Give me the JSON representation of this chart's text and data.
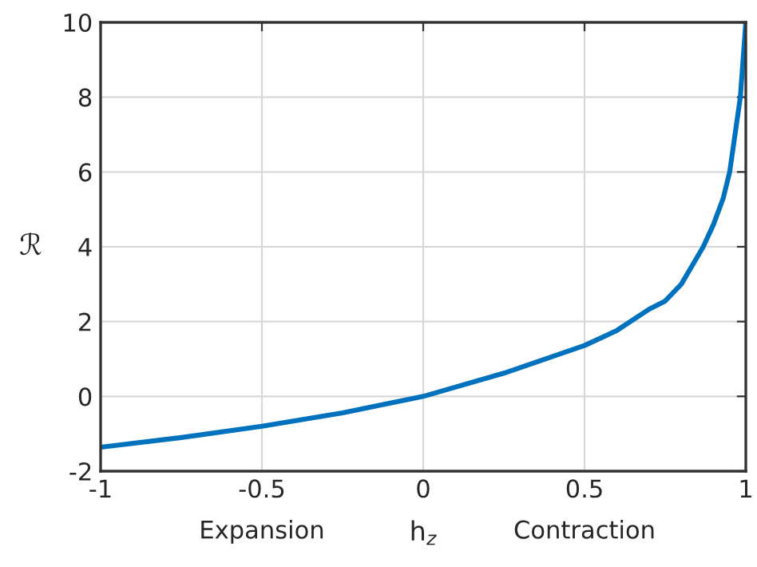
{
  "chart_data": {
    "type": "line",
    "xlabel": "h$_{z}$",
    "ylabel": "ℛ",
    "annotations": [
      "Expansion",
      "Contraction"
    ],
    "x": [
      -1,
      -0.75,
      -0.5,
      -0.25,
      0,
      0.25,
      0.5,
      0.6,
      0.7,
      0.75,
      0.8,
      0.868,
      0.9,
      0.93,
      0.95,
      0.983,
      1
    ],
    "series": [
      {
        "color": "#0072bd",
        "values": [
          -1.36,
          -1.1,
          -0.8,
          -0.44,
          0,
          0.62,
          1.36,
          1.76,
          2.33,
          2.55,
          3.0,
          4.0,
          4.6,
          5.3,
          6.0,
          8.0,
          10.0
        ]
      }
    ],
    "xlim": [
      -1,
      1
    ],
    "ylim": [
      -2,
      10
    ],
    "xticks": [
      -1,
      -0.5,
      0,
      0.5,
      1
    ],
    "yticks": [
      -2,
      0,
      2,
      4,
      6,
      8,
      10
    ],
    "grid": true,
    "line_style": "solid",
    "marker": "none"
  }
}
